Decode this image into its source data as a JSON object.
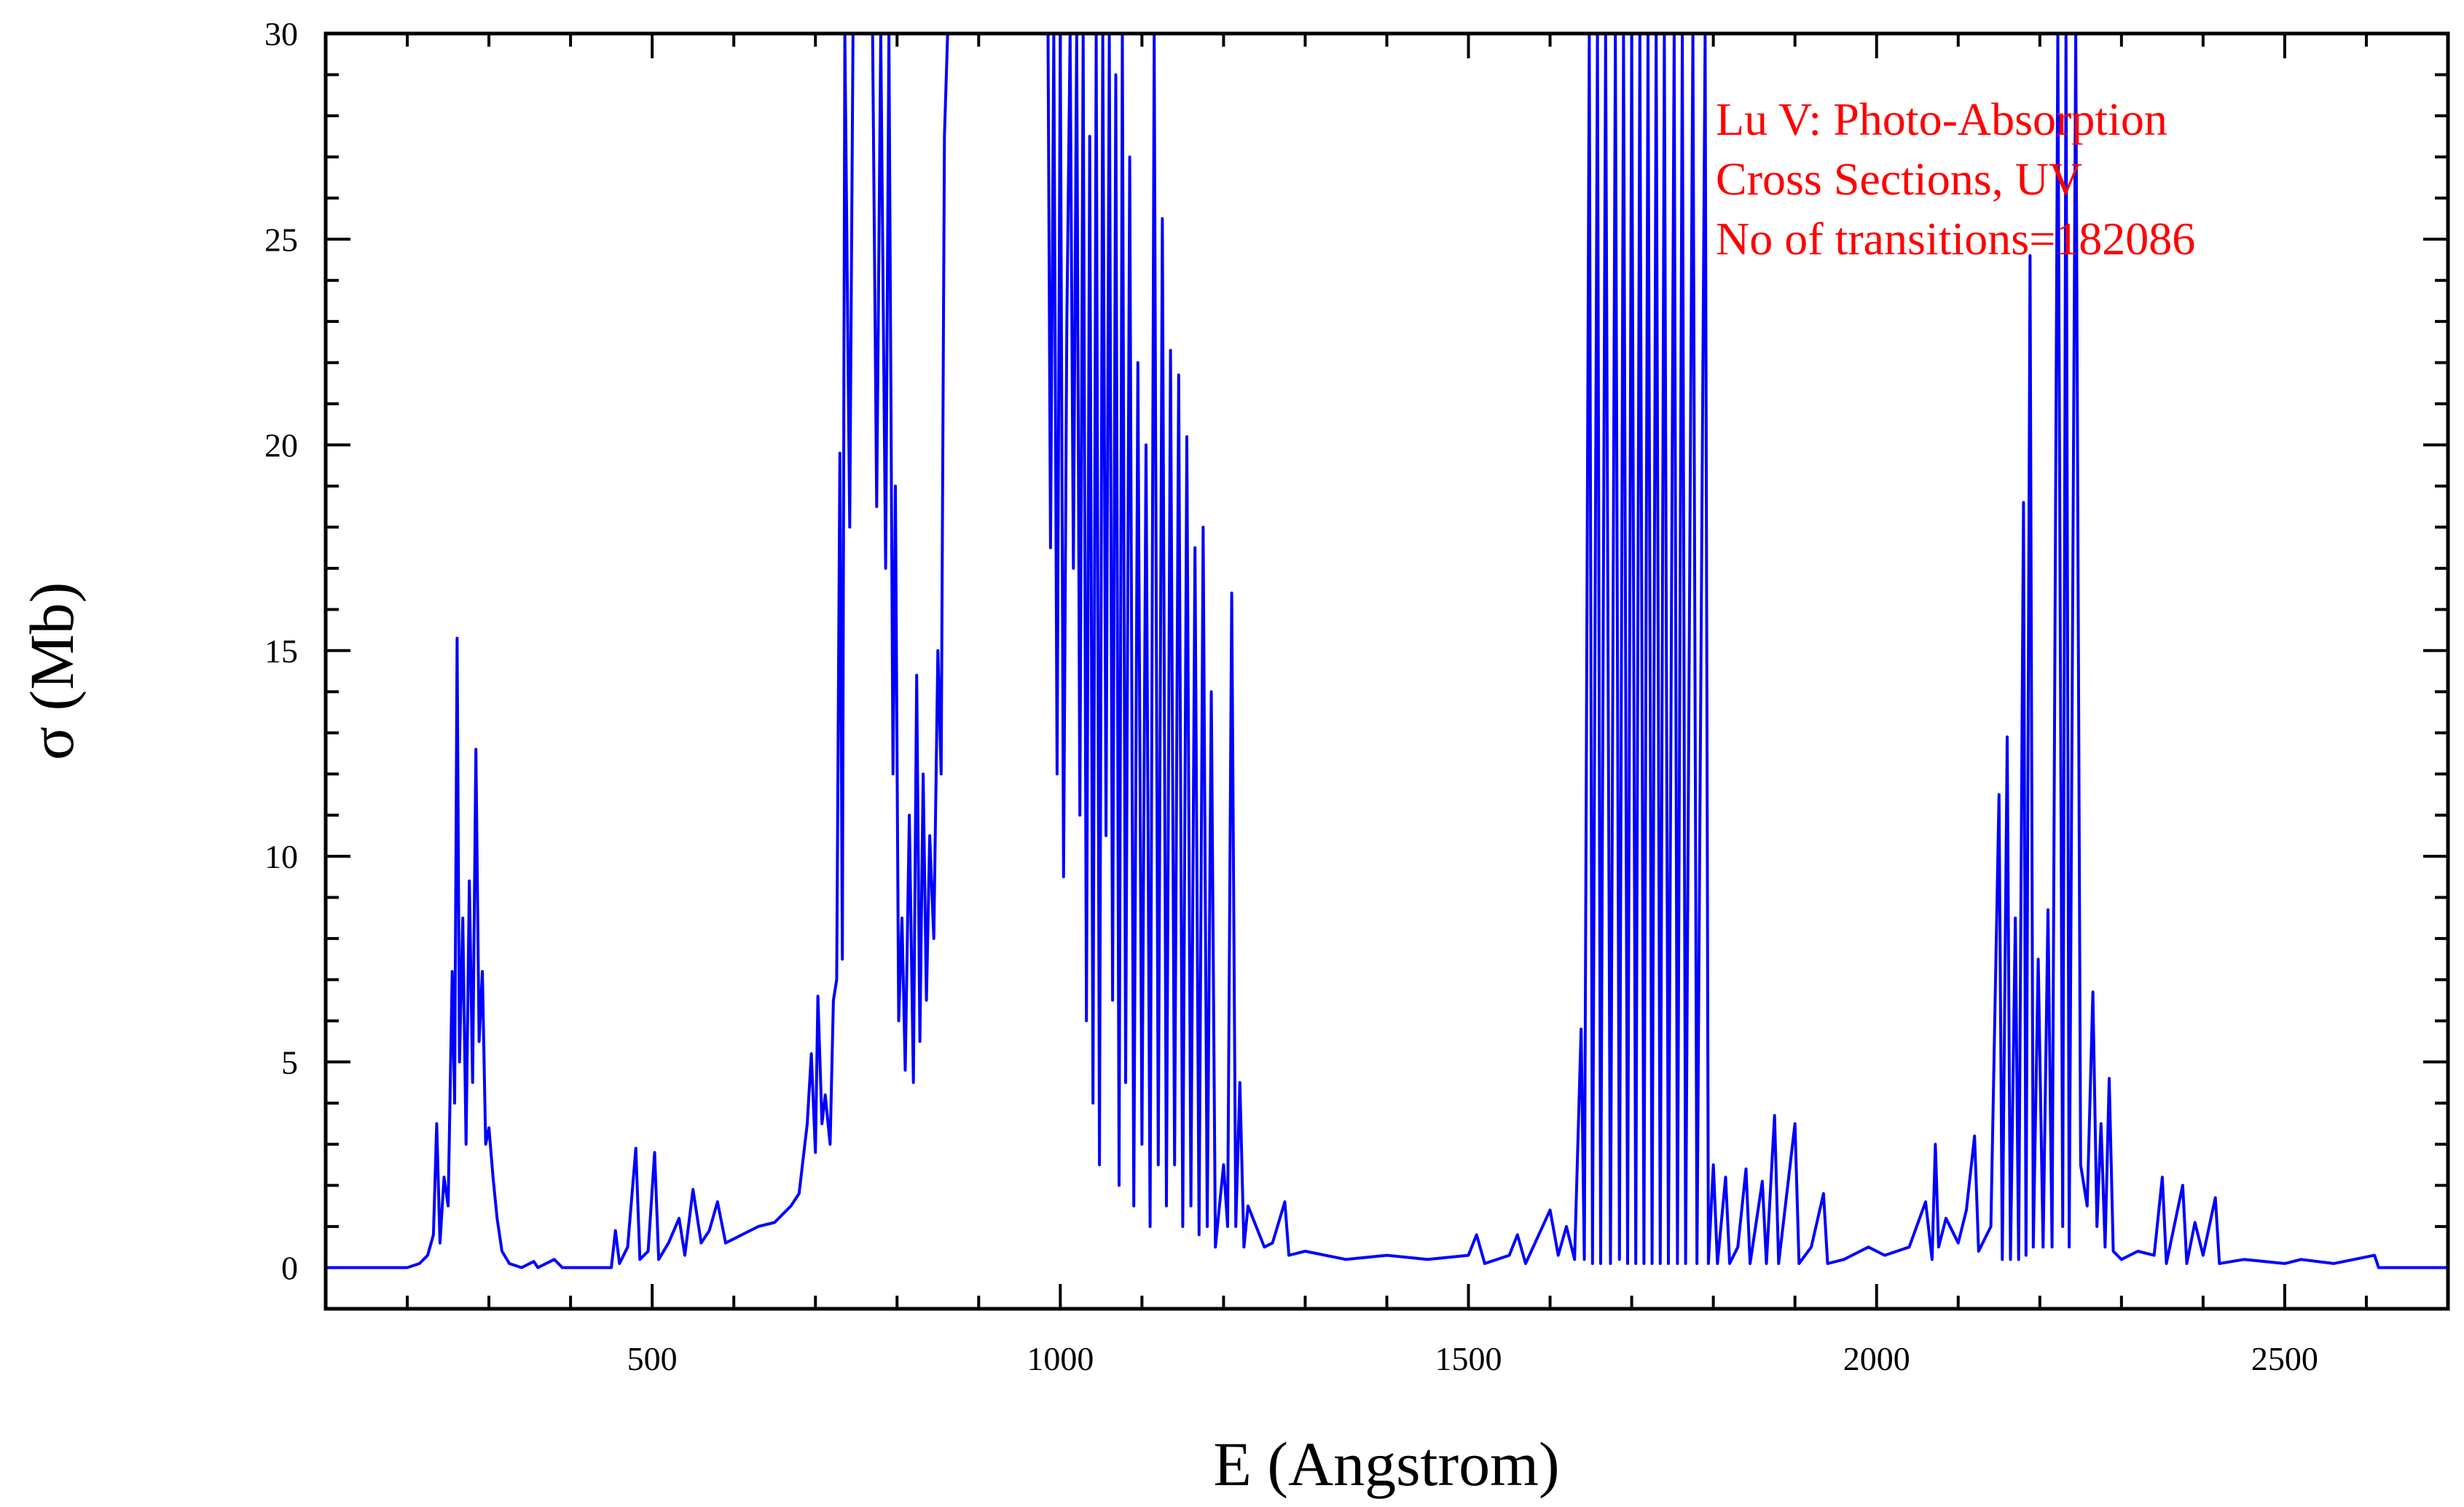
{
  "chart_data": {
    "type": "line",
    "title": "",
    "xlabel": "E (Angstrom)",
    "ylabel": "σ (Mb)",
    "xlim": [
      100,
      2700
    ],
    "ylim": [
      -1,
      30
    ],
    "x_ticks": [
      500,
      1000,
      1500,
      2000,
      2500
    ],
    "y_ticks": [
      0,
      5,
      10,
      15,
      20,
      25,
      30
    ],
    "grid": false,
    "legend": "none",
    "annotation": [
      "Lu V: Photo-Absorption",
      "Cross Sections, UV",
      "No of transitions=182086"
    ],
    "colors": {
      "series": "#0000ff",
      "annotation": "#ff0000",
      "axes": "#000000"
    },
    "series": [
      {
        "points": [
          [
            100,
            0
          ],
          [
            200,
            0
          ],
          [
            215,
            0.1
          ],
          [
            225,
            0.3
          ],
          [
            232,
            0.8
          ],
          [
            236,
            3.5
          ],
          [
            240,
            0.6
          ],
          [
            245,
            2.2
          ],
          [
            250,
            1.5
          ],
          [
            255,
            7.2
          ],
          [
            258,
            4.0
          ],
          [
            261,
            15.3
          ],
          [
            264,
            5.0
          ],
          [
            268,
            8.5
          ],
          [
            272,
            3.0
          ],
          [
            276,
            9.4
          ],
          [
            280,
            4.5
          ],
          [
            284,
            12.6
          ],
          [
            288,
            5.5
          ],
          [
            292,
            7.2
          ],
          [
            296,
            3.0
          ],
          [
            300,
            3.4
          ],
          [
            305,
            2.2
          ],
          [
            310,
            1.2
          ],
          [
            316,
            0.4
          ],
          [
            325,
            0.1
          ],
          [
            340,
            0
          ],
          [
            355,
            0.15
          ],
          [
            360,
            0
          ],
          [
            380,
            0.2
          ],
          [
            390,
            0
          ],
          [
            450,
            0
          ],
          [
            455,
            0.9
          ],
          [
            460,
            0.1
          ],
          [
            470,
            0.5
          ],
          [
            480,
            2.9
          ],
          [
            485,
            0.2
          ],
          [
            495,
            0.4
          ],
          [
            503,
            2.8
          ],
          [
            508,
            0.2
          ],
          [
            520,
            0.6
          ],
          [
            533,
            1.2
          ],
          [
            540,
            0.3
          ],
          [
            550,
            1.9
          ],
          [
            560,
            0.6
          ],
          [
            570,
            0.9
          ],
          [
            580,
            1.6
          ],
          [
            590,
            0.6
          ],
          [
            610,
            0.8
          ],
          [
            630,
            1.0
          ],
          [
            650,
            1.1
          ],
          [
            670,
            1.5
          ],
          [
            680,
            1.8
          ],
          [
            690,
            3.5
          ],
          [
            695,
            5.2
          ],
          [
            700,
            2.8
          ],
          [
            703,
            6.6
          ],
          [
            708,
            3.5
          ],
          [
            712,
            4.2
          ],
          [
            718,
            3.0
          ],
          [
            722,
            6.5
          ],
          [
            726,
            7.0
          ],
          [
            730,
            19.8
          ],
          [
            733,
            7.5
          ],
          [
            736,
            30
          ],
          [
            742,
            18.0
          ],
          [
            746,
            30
          ],
          [
            750,
            30
          ],
          [
            760,
            30
          ],
          [
            770,
            30
          ],
          [
            775,
            18.5
          ],
          [
            780,
            30
          ],
          [
            786,
            17.0
          ],
          [
            790,
            30
          ],
          [
            795,
            12.0
          ],
          [
            798,
            19.0
          ],
          [
            802,
            6.0
          ],
          [
            806,
            8.5
          ],
          [
            810,
            4.8
          ],
          [
            815,
            11.0
          ],
          [
            820,
            4.5
          ],
          [
            824,
            14.4
          ],
          [
            828,
            5.5
          ],
          [
            832,
            12.0
          ],
          [
            836,
            6.5
          ],
          [
            840,
            10.5
          ],
          [
            845,
            8.0
          ],
          [
            850,
            15.0
          ],
          [
            854,
            12.0
          ],
          [
            858,
            27.5
          ],
          [
            862,
            30
          ],
          [
            868,
            30
          ],
          [
            875,
            30
          ],
          [
            985,
            30
          ],
          [
            988,
            17.5
          ],
          [
            992,
            30
          ],
          [
            996,
            12.0
          ],
          [
            1000,
            30
          ],
          [
            1004,
            9.5
          ],
          [
            1008,
            23.0
          ],
          [
            1012,
            30
          ],
          [
            1016,
            17.0
          ],
          [
            1020,
            30
          ],
          [
            1024,
            11.0
          ],
          [
            1028,
            30
          ],
          [
            1032,
            6.0
          ],
          [
            1036,
            27.5
          ],
          [
            1040,
            4.0
          ],
          [
            1044,
            30
          ],
          [
            1048,
            2.5
          ],
          [
            1052,
            30
          ],
          [
            1056,
            10.5
          ],
          [
            1060,
            30
          ],
          [
            1064,
            6.5
          ],
          [
            1068,
            29.0
          ],
          [
            1072,
            2.0
          ],
          [
            1076,
            30
          ],
          [
            1080,
            4.5
          ],
          [
            1085,
            27.0
          ],
          [
            1090,
            1.5
          ],
          [
            1095,
            22.0
          ],
          [
            1100,
            3.0
          ],
          [
            1105,
            20.0
          ],
          [
            1110,
            1.0
          ],
          [
            1115,
            30
          ],
          [
            1120,
            2.5
          ],
          [
            1125,
            25.5
          ],
          [
            1130,
            1.5
          ],
          [
            1135,
            22.3
          ],
          [
            1140,
            2.5
          ],
          [
            1145,
            21.7
          ],
          [
            1150,
            1.0
          ],
          [
            1155,
            20.2
          ],
          [
            1160,
            1.5
          ],
          [
            1165,
            17.5
          ],
          [
            1170,
            0.8
          ],
          [
            1175,
            18.0
          ],
          [
            1180,
            1.0
          ],
          [
            1185,
            14.0
          ],
          [
            1190,
            0.5
          ],
          [
            1200,
            2.5
          ],
          [
            1205,
            1.0
          ],
          [
            1210,
            16.4
          ],
          [
            1215,
            1.0
          ],
          [
            1220,
            4.5
          ],
          [
            1225,
            0.5
          ],
          [
            1230,
            1.5
          ],
          [
            1240,
            1.0
          ],
          [
            1250,
            0.5
          ],
          [
            1260,
            0.6
          ],
          [
            1275,
            1.6
          ],
          [
            1280,
            0.3
          ],
          [
            1300,
            0.4
          ],
          [
            1350,
            0.2
          ],
          [
            1400,
            0.3
          ],
          [
            1450,
            0.2
          ],
          [
            1500,
            0.3
          ],
          [
            1510,
            0.8
          ],
          [
            1520,
            0.1
          ],
          [
            1550,
            0.3
          ],
          [
            1560,
            0.8
          ],
          [
            1570,
            0.1
          ],
          [
            1600,
            1.4
          ],
          [
            1610,
            0.3
          ],
          [
            1620,
            1.0
          ],
          [
            1630,
            0.2
          ],
          [
            1638,
            5.8
          ],
          [
            1642,
            0.2
          ],
          [
            1648,
            30
          ],
          [
            1652,
            0.1
          ],
          [
            1658,
            30
          ],
          [
            1662,
            0.1
          ],
          [
            1668,
            30
          ],
          [
            1674,
            0.1
          ],
          [
            1680,
            30
          ],
          [
            1685,
            0.2
          ],
          [
            1690,
            30
          ],
          [
            1695,
            0.1
          ],
          [
            1700,
            30
          ],
          [
            1705,
            0.1
          ],
          [
            1710,
            30
          ],
          [
            1715,
            0.1
          ],
          [
            1720,
            30
          ],
          [
            1725,
            0.1
          ],
          [
            1730,
            30
          ],
          [
            1735,
            0.1
          ],
          [
            1740,
            30
          ],
          [
            1745,
            0.1
          ],
          [
            1752,
            30
          ],
          [
            1756,
            0.1
          ],
          [
            1762,
            30
          ],
          [
            1766,
            0.1
          ],
          [
            1775,
            30
          ],
          [
            1780,
            0.1
          ],
          [
            1790,
            30
          ],
          [
            1794,
            0.1
          ],
          [
            1800,
            2.5
          ],
          [
            1805,
            0.1
          ],
          [
            1815,
            2.2
          ],
          [
            1820,
            0.1
          ],
          [
            1830,
            0.5
          ],
          [
            1840,
            2.4
          ],
          [
            1845,
            0.1
          ],
          [
            1860,
            2.1
          ],
          [
            1865,
            0.1
          ],
          [
            1875,
            3.7
          ],
          [
            1880,
            0.1
          ],
          [
            1900,
            3.5
          ],
          [
            1905,
            0.1
          ],
          [
            1920,
            0.5
          ],
          [
            1935,
            1.8
          ],
          [
            1940,
            0.1
          ],
          [
            1960,
            0.2
          ],
          [
            1990,
            0.5
          ],
          [
            2010,
            0.3
          ],
          [
            2040,
            0.5
          ],
          [
            2060,
            1.6
          ],
          [
            2068,
            0.2
          ],
          [
            2072,
            3.0
          ],
          [
            2076,
            0.5
          ],
          [
            2085,
            1.2
          ],
          [
            2100,
            0.6
          ],
          [
            2110,
            1.4
          ],
          [
            2120,
            3.2
          ],
          [
            2125,
            0.4
          ],
          [
            2140,
            1.0
          ],
          [
            2150,
            11.5
          ],
          [
            2154,
            0.2
          ],
          [
            2160,
            12.9
          ],
          [
            2164,
            0.2
          ],
          [
            2170,
            8.5
          ],
          [
            2174,
            0.2
          ],
          [
            2180,
            18.6
          ],
          [
            2183,
            0.3
          ],
          [
            2188,
            24.6
          ],
          [
            2192,
            0.5
          ],
          [
            2198,
            7.5
          ],
          [
            2204,
            0.5
          ],
          [
            2210,
            8.7
          ],
          [
            2215,
            0.5
          ],
          [
            2222,
            30
          ],
          [
            2228,
            1.0
          ],
          [
            2232,
            30
          ],
          [
            2236,
            0.5
          ],
          [
            2244,
            30
          ],
          [
            2250,
            2.5
          ],
          [
            2258,
            1.5
          ],
          [
            2265,
            6.7
          ],
          [
            2270,
            1.0
          ],
          [
            2275,
            3.5
          ],
          [
            2280,
            0.5
          ],
          [
            2285,
            4.6
          ],
          [
            2290,
            0.4
          ],
          [
            2300,
            0.2
          ],
          [
            2320,
            0.4
          ],
          [
            2340,
            0.3
          ],
          [
            2350,
            2.2
          ],
          [
            2355,
            0.1
          ],
          [
            2375,
            2.0
          ],
          [
            2380,
            0.1
          ],
          [
            2390,
            1.1
          ],
          [
            2400,
            0.3
          ],
          [
            2415,
            1.7
          ],
          [
            2420,
            0.1
          ],
          [
            2450,
            0.2
          ],
          [
            2500,
            0.1
          ],
          [
            2520,
            0.2
          ],
          [
            2560,
            0.1
          ],
          [
            2610,
            0.3
          ],
          [
            2615,
            0
          ],
          [
            2700,
            0
          ]
        ]
      }
    ]
  }
}
